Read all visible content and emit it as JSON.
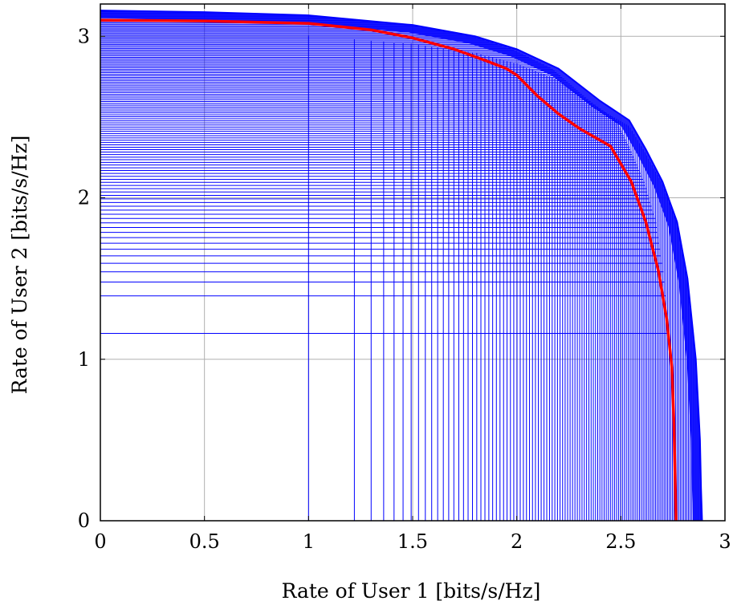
{
  "chart_data": {
    "type": "line",
    "title": "",
    "xlabel": "Rate of User 1 [bits/s/Hz]",
    "ylabel": "Rate of User 2 [bits/s/Hz]",
    "xlim": [
      0,
      3
    ],
    "ylim": [
      0,
      3.2
    ],
    "x_ticks": [
      0,
      0.5,
      1,
      1.5,
      2,
      2.5,
      3
    ],
    "y_ticks": [
      0,
      1,
      2,
      3
    ],
    "x_tick_labels": [
      "0",
      "0.5",
      "1",
      "1.5",
      "2",
      "2.5",
      "3"
    ],
    "y_tick_labels": [
      "0",
      "1",
      "2",
      "3"
    ],
    "grid": true,
    "series": [
      {
        "role": "outer-envelope",
        "color": "#0000ff",
        "x": [
          0,
          0.5,
          1.0,
          1.5,
          1.8,
          2.0,
          2.2,
          2.4,
          2.54,
          2.62,
          2.7,
          2.77,
          2.82,
          2.86,
          2.88,
          2.885,
          2.89
        ],
        "y": [
          3.16,
          3.15,
          3.13,
          3.07,
          3.0,
          2.92,
          2.8,
          2.6,
          2.48,
          2.3,
          2.1,
          1.85,
          1.5,
          1.0,
          0.5,
          0.2,
          0.0
        ]
      },
      {
        "role": "boundary",
        "color": "#ff0000",
        "x": [
          0,
          0.5,
          1.0,
          1.3,
          1.5,
          1.7,
          1.85,
          1.95,
          2.0,
          2.1,
          2.2,
          2.3,
          2.45,
          2.55,
          2.62,
          2.68,
          2.72,
          2.745,
          2.755,
          2.76,
          2.765
        ],
        "y": [
          3.1,
          3.095,
          3.08,
          3.04,
          2.99,
          2.92,
          2.85,
          2.8,
          2.76,
          2.63,
          2.52,
          2.43,
          2.32,
          2.1,
          1.85,
          1.55,
          1.25,
          0.95,
          0.6,
          0.3,
          0.0
        ]
      }
    ],
    "region_family": {
      "color": "#0000ff",
      "description_free": true,
      "count": 120
    }
  }
}
